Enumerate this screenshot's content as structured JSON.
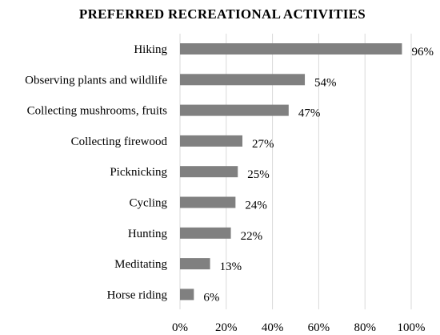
{
  "chart_data": {
    "type": "bar",
    "orientation": "horizontal",
    "title": "PREFERRED RECREATIONAL ACTIVITIES",
    "categories": [
      "Hiking",
      "Observing plants and wildlife",
      "Collecting mushrooms, fruits",
      "Collecting firewood",
      "Picknicking",
      "Cycling",
      "Hunting",
      "Meditating",
      "Horse riding"
    ],
    "values": [
      96,
      54,
      47,
      27,
      25,
      24,
      22,
      13,
      6
    ],
    "value_labels": [
      "96%",
      "54%",
      "47%",
      "27%",
      "25%",
      "24%",
      "22%",
      "13%",
      "6%"
    ],
    "xlim": [
      0,
      100
    ],
    "x_ticks": [
      "0%",
      "20%",
      "40%",
      "60%",
      "80%",
      "100%"
    ],
    "grid": true,
    "bar_color": "#808080"
  }
}
